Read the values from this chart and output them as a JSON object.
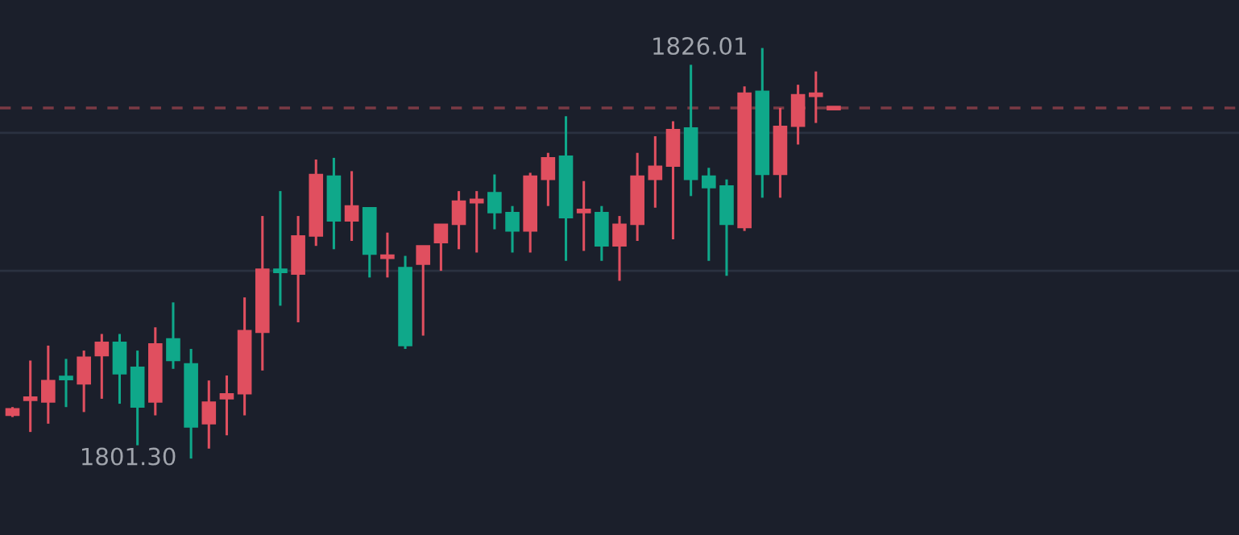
{
  "chart_data": {
    "type": "candlestick",
    "categories": [
      null,
      null,
      null,
      null,
      null,
      null,
      null,
      null,
      null,
      null,
      null,
      null,
      null,
      null,
      null,
      null,
      null,
      null,
      null,
      null,
      null,
      null,
      null,
      null,
      null,
      null,
      null,
      null,
      null,
      null,
      null,
      null,
      null,
      null,
      null,
      null,
      null,
      null,
      null,
      null,
      null,
      null,
      null,
      null,
      null,
      null,
      null
    ],
    "ohlc": [
      [
        1803.9,
        1804.4,
        1803.8,
        1804.3
      ],
      [
        1804.8,
        1807.2,
        1802.9,
        1805.0
      ],
      [
        1804.7,
        1808.1,
        1803.4,
        1806.0
      ],
      [
        1806.2,
        1807.3,
        1804.4,
        1806.1
      ],
      [
        1805.8,
        1807.8,
        1804.1,
        1807.4
      ],
      [
        1807.5,
        1808.8,
        1804.9,
        1808.3
      ],
      [
        1808.3,
        1808.8,
        1804.6,
        1806.4
      ],
      [
        1806.8,
        1807.8,
        1802.1,
        1804.4
      ],
      [
        1804.7,
        1809.2,
        1803.9,
        1808.2
      ],
      [
        1808.5,
        1810.7,
        1806.7,
        1807.2
      ],
      [
        1807.0,
        1807.9,
        1801.3,
        1803.2
      ],
      [
        1803.4,
        1806.0,
        1801.9,
        1804.7
      ],
      [
        1804.9,
        1806.3,
        1802.7,
        1805.2
      ],
      [
        1805.2,
        1811.0,
        1803.9,
        1809.0
      ],
      [
        1808.9,
        1815.9,
        1806.6,
        1812.7
      ],
      [
        1812.7,
        1817.4,
        1810.5,
        1812.5
      ],
      [
        1812.4,
        1815.9,
        1809.5,
        1814.7
      ],
      [
        1814.7,
        1819.3,
        1814.1,
        1818.4
      ],
      [
        1818.3,
        1819.4,
        1813.9,
        1815.6
      ],
      [
        1815.6,
        1818.6,
        1814.4,
        1816.5
      ],
      [
        1816.4,
        1816.4,
        1812.2,
        1813.6
      ],
      [
        1813.4,
        1814.9,
        1812.2,
        1813.5
      ],
      [
        1812.8,
        1813.5,
        1807.9,
        1808.1
      ],
      [
        1813.0,
        1814.1,
        1808.7,
        1814.1
      ],
      [
        1814.3,
        1815.4,
        1812.6,
        1815.4
      ],
      [
        1815.4,
        1817.4,
        1813.9,
        1816.8
      ],
      [
        1816.7,
        1817.4,
        1813.7,
        1816.9
      ],
      [
        1817.3,
        1818.4,
        1815.1,
        1816.1
      ],
      [
        1816.1,
        1816.5,
        1813.7,
        1815.0
      ],
      [
        1815.0,
        1818.5,
        1813.7,
        1818.3
      ],
      [
        1818.1,
        1819.7,
        1816.5,
        1819.4
      ],
      [
        1819.5,
        1821.9,
        1813.2,
        1815.8
      ],
      [
        1816.1,
        1818.0,
        1813.8,
        1816.3
      ],
      [
        1816.1,
        1816.5,
        1813.2,
        1814.1
      ],
      [
        1814.1,
        1815.9,
        1812.0,
        1815.4
      ],
      [
        1815.4,
        1819.7,
        1814.4,
        1818.3
      ],
      [
        1818.1,
        1820.7,
        1816.4,
        1818.9
      ],
      [
        1818.9,
        1821.6,
        1814.5,
        1821.1
      ],
      [
        1821.2,
        1825.0,
        1817.1,
        1818.1
      ],
      [
        1818.3,
        1818.8,
        1813.2,
        1817.6
      ],
      [
        1817.7,
        1818.1,
        1812.3,
        1815.4
      ],
      [
        1815.2,
        1823.7,
        1815.0,
        1823.3
      ],
      [
        1823.4,
        1826.01,
        1817.0,
        1818.4
      ],
      [
        1818.4,
        1822.4,
        1817.0,
        1821.3
      ],
      [
        1821.3,
        1823.8,
        1820.2,
        1823.2
      ],
      [
        1823.1,
        1824.6,
        1821.5,
        1823.3
      ],
      [
        1822.4,
        1822.4,
        1822.4,
        1822.4
      ]
    ],
    "colors": [
      "#e04f5f",
      "#e04f5f",
      "#e04f5f",
      "#0fa88a",
      "#e04f5f",
      "#e04f5f",
      "#0fa88a",
      "#0fa88a",
      "#e04f5f",
      "#0fa88a",
      "#0fa88a",
      "#e04f5f",
      "#e04f5f",
      "#e04f5f",
      "#e04f5f",
      "#0fa88a",
      "#e04f5f",
      "#e04f5f",
      "#0fa88a",
      "#e04f5f",
      "#0fa88a",
      "#e04f5f",
      "#0fa88a",
      "#e04f5f",
      "#e04f5f",
      "#e04f5f",
      "#e04f5f",
      "#0fa88a",
      "#0fa88a",
      "#e04f5f",
      "#e04f5f",
      "#0fa88a",
      "#e04f5f",
      "#0fa88a",
      "#e04f5f",
      "#e04f5f",
      "#e04f5f",
      "#e04f5f",
      "#0fa88a",
      "#0fa88a",
      "#0fa88a",
      "#e04f5f",
      "#0fa88a",
      "#e04f5f",
      "#e04f5f",
      "#e04f5f",
      "#e04f5f"
    ],
    "annotations": [
      "1826.01",
      "1801.30"
    ],
    "ref_lines": [
      {
        "axis": "y",
        "value": 1822.4,
        "label": null,
        "color": "#7a3a44",
        "line_style": "dashed"
      }
    ],
    "grid": "y",
    "ylim": [
      1796.7,
      1828.9
    ],
    "yticks": [
      {
        "value": 1812.6,
        "label": null
      },
      {
        "value": 1820.9,
        "label": null
      }
    ]
  }
}
